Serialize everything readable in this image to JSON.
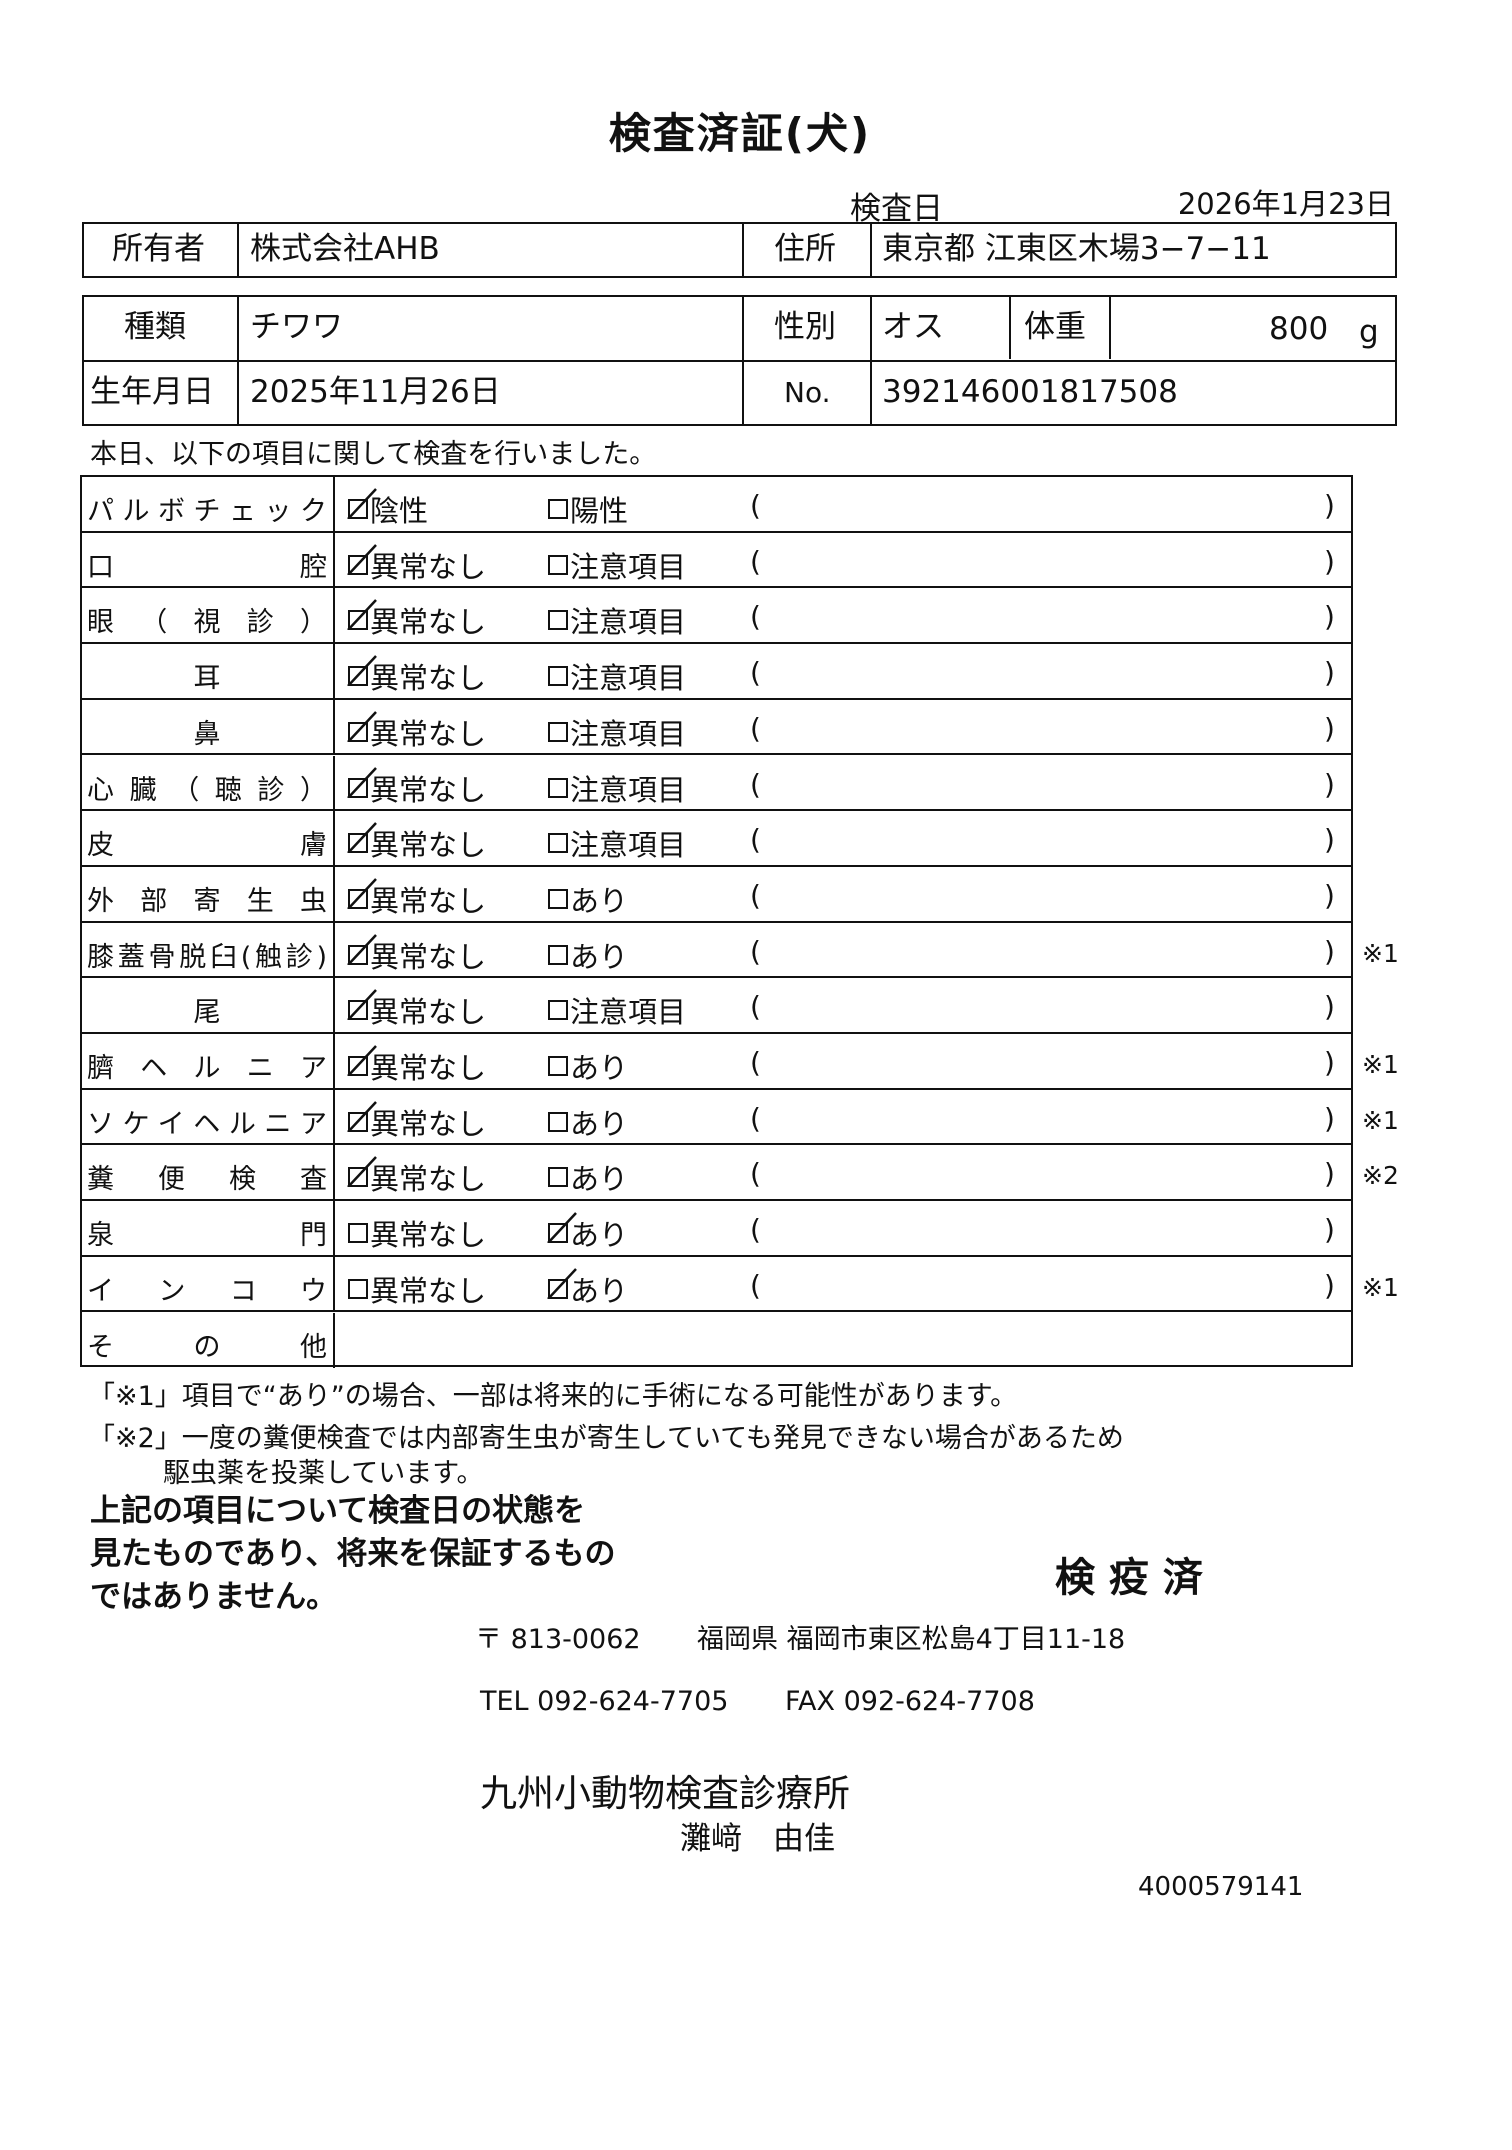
{
  "title": "検査済証(犬)",
  "exam_date_label": "検査日",
  "exam_date": "2026年1月23日",
  "owner": {
    "label": "所有者",
    "value": "株式会社AHB",
    "address_label": "住所",
    "address": "東京都 江東区木場3−7−11"
  },
  "animal": {
    "breed_label": "種類",
    "breed": "チワワ",
    "sex_label": "性別",
    "sex": "オス",
    "weight_label": "体重",
    "weight": "800",
    "weight_unit": "g",
    "birth_label": "生年月日",
    "birth": "2025年11月26日",
    "no_label": "No.",
    "no": "392146001817508"
  },
  "intro": "本日、以下の項目に関して検査を行いました。",
  "paren_open": "(",
  "paren_close": ")",
  "rows": [
    {
      "label": "パルボチェック",
      "opt1": "陰性",
      "opt2": "陽性",
      "checked": 1,
      "note": ""
    },
    {
      "label": "口　　　　腔",
      "opt1": "異常なし",
      "opt2": "注意項目",
      "checked": 1,
      "note": ""
    },
    {
      "label": "眼（視診）",
      "opt1": "異常なし",
      "opt2": "注意項目",
      "checked": 1,
      "note": ""
    },
    {
      "label": "耳",
      "opt1": "異常なし",
      "opt2": "注意項目",
      "checked": 1,
      "note": ""
    },
    {
      "label": "鼻",
      "opt1": "異常なし",
      "opt2": "注意項目",
      "checked": 1,
      "note": ""
    },
    {
      "label": "心臓（聴診）",
      "opt1": "異常なし",
      "opt2": "注意項目",
      "checked": 1,
      "note": ""
    },
    {
      "label": "皮　　　　膚",
      "opt1": "異常なし",
      "opt2": "注意項目",
      "checked": 1,
      "note": ""
    },
    {
      "label": "外部寄生虫",
      "opt1": "異常なし",
      "opt2": "あり",
      "checked": 1,
      "note": ""
    },
    {
      "label": "膝蓋骨脱臼(触診)",
      "opt1": "異常なし",
      "opt2": "あり",
      "checked": 1,
      "note": "※1"
    },
    {
      "label": "尾",
      "opt1": "異常なし",
      "opt2": "注意項目",
      "checked": 1,
      "note": ""
    },
    {
      "label": "臍ヘルニア",
      "opt1": "異常なし",
      "opt2": "あり",
      "checked": 1,
      "note": "※1"
    },
    {
      "label": "ソケイヘルニア",
      "opt1": "異常なし",
      "opt2": "あり",
      "checked": 1,
      "note": "※1"
    },
    {
      "label": "糞便検査",
      "opt1": "異常なし",
      "opt2": "あり",
      "checked": 1,
      "note": "※2"
    },
    {
      "label": "泉　　　　門",
      "opt1": "異常なし",
      "opt2": "あり",
      "checked": 2,
      "note": ""
    },
    {
      "label": "インコウ",
      "opt1": "異常なし",
      "opt2": "あり",
      "checked": 2,
      "note": "※1"
    },
    {
      "label": "その他",
      "opt1": "",
      "opt2": "",
      "checked": 0,
      "note": "",
      "other": true
    }
  ],
  "footnotes": {
    "note1": "「※1」項目で“あり”の場合、一部は将来的に手術になる可能性があります。",
    "note2_line1": "「※2」一度の糞便検査では内部寄生虫が寄生していても発見できない場合があるため",
    "note2_line2": "駆虫薬を投薬しています。"
  },
  "disclaimer": [
    "上記の項目について検査日の状態を",
    "見たものであり、将来を保証するもの",
    "ではありません。"
  ],
  "stamp": "検 疫 済",
  "clinic": {
    "postal": "〒 813-0062",
    "address": "福岡県 福岡市東区松島4丁目11-18",
    "tel": "TEL 092-624-7705",
    "fax": "FAX 092-624-7708",
    "name": "九州小動物検査診療所",
    "vet": "灘﨑　由佳"
  },
  "doc_number": "4000579141"
}
